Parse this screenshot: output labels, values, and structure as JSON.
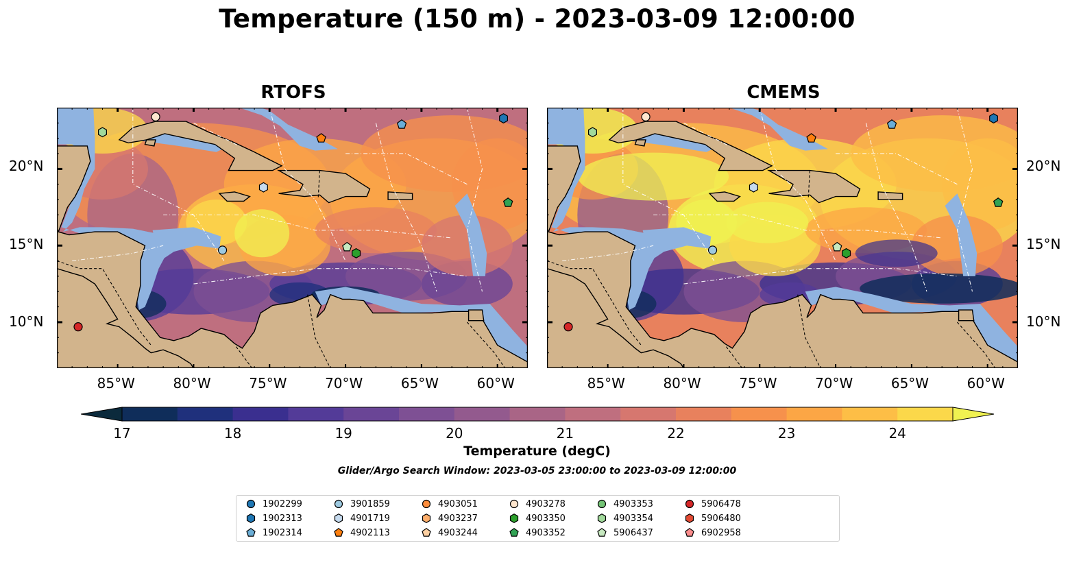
{
  "title": "Temperature (150 m) - 2023-03-09 12:00:00",
  "panels": [
    {
      "title": "RTOFS",
      "warmth": 0
    },
    {
      "title": "CMEMS",
      "warmth": 1
    }
  ],
  "latitude_labels": [
    "20°N",
    "15°N",
    "10°N"
  ],
  "longitude_labels": [
    "85°W",
    "80°W",
    "75°W",
    "70°W",
    "65°W",
    "60°W"
  ],
  "colorbar": {
    "label": "Temperature (degC)",
    "ticks": [
      "17",
      "18",
      "19",
      "20",
      "21",
      "22",
      "23",
      "24"
    ],
    "min": 17,
    "max": 24.5,
    "step": 0.5,
    "extend": "both",
    "colors": [
      "#0b2a3c",
      "#0f2d5a",
      "#1f307c",
      "#3a2f8f",
      "#533b98",
      "#6a4596",
      "#7e5094",
      "#935a8e",
      "#a96586",
      "#bf6f7f",
      "#d6776f",
      "#e8815d",
      "#f6914c",
      "#fca645",
      "#fdbe46",
      "#fbd84a",
      "#f0f251"
    ],
    "land": "#d2b48c",
    "shelf": "#8fb3e0",
    "pacific": "#0a2430"
  },
  "search_window": "Glider/Argo Search Window: 2023-03-05 23:00:00 to 2023-03-09 12:00:00",
  "legend": [
    {
      "id": "1902299",
      "color": "#1f77b4",
      "marker": "circle"
    },
    {
      "id": "1902313",
      "color": "#1f77b4",
      "marker": "hexagon"
    },
    {
      "id": "1902314",
      "color": "#6baed6",
      "marker": "pentagon"
    },
    {
      "id": "3901859",
      "color": "#9ecae1",
      "marker": "circle"
    },
    {
      "id": "4901719",
      "color": "#c6dbef",
      "marker": "hexagon"
    },
    {
      "id": "4902113",
      "color": "#fd7f0e",
      "marker": "pentagon"
    },
    {
      "id": "4903051",
      "color": "#fd8d3c",
      "marker": "circle"
    },
    {
      "id": "4903237",
      "color": "#fdae6b",
      "marker": "hexagon"
    },
    {
      "id": "4903244",
      "color": "#fdd0a2",
      "marker": "pentagon"
    },
    {
      "id": "4903278",
      "color": "#fee6ce",
      "marker": "circle"
    },
    {
      "id": "4903350",
      "color": "#2ca02c",
      "marker": "hexagon"
    },
    {
      "id": "4903352",
      "color": "#31a354",
      "marker": "pentagon"
    },
    {
      "id": "4903353",
      "color": "#74c476",
      "marker": "circle"
    },
    {
      "id": "4903354",
      "color": "#a1d99b",
      "marker": "hexagon"
    },
    {
      "id": "5906437",
      "color": "#c7e9c0",
      "marker": "pentagon"
    },
    {
      "id": "5906478",
      "color": "#d62728",
      "marker": "circle"
    },
    {
      "id": "5906480",
      "color": "#e34a33",
      "marker": "hexagon"
    },
    {
      "id": "6902958",
      "color": "#fc8d8d",
      "marker": "pentagon"
    }
  ],
  "floats": [
    {
      "id": "4903278",
      "lon": -82.5,
      "lat": 23.4
    },
    {
      "id": "4903354",
      "lon": -86.0,
      "lat": 22.4
    },
    {
      "id": "1902314",
      "lon": -66.3,
      "lat": 22.9
    },
    {
      "id": "1902313",
      "lon": -59.6,
      "lat": 23.3
    },
    {
      "id": "4902113",
      "lon": -71.6,
      "lat": 22.0
    },
    {
      "id": "4901719",
      "lon": -75.4,
      "lat": 18.8
    },
    {
      "id": "4903352",
      "lon": -59.3,
      "lat": 17.8
    },
    {
      "id": "3901859",
      "lon": -78.1,
      "lat": 14.7
    },
    {
      "id": "5906437",
      "lon": -69.9,
      "lat": 14.9
    },
    {
      "id": "4903350",
      "lon": -69.3,
      "lat": 14.5
    },
    {
      "id": "5906478",
      "lon": -87.6,
      "lat": 9.7
    }
  ],
  "map_extent": {
    "lon_min": -89.0,
    "lon_max": -58.0,
    "lat_min": 7.0,
    "lat_max": 24.0
  }
}
